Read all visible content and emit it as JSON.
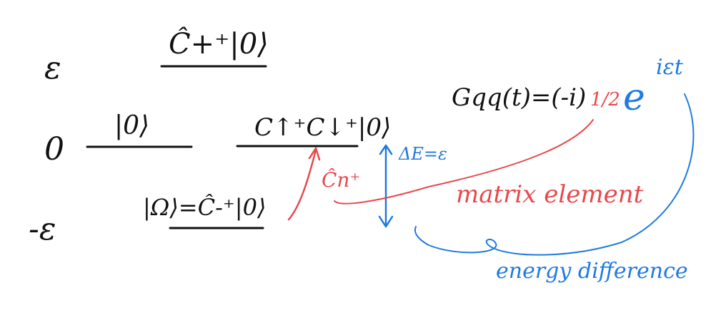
{
  "colors": {
    "ink": "#111111",
    "red": "#e8484b",
    "blue": "#1f7ae0",
    "background": "#ffffff"
  },
  "levels": [
    {
      "energy_label": "ε",
      "states": [
        {
          "label": "Ĉ+⁺|0⟩"
        }
      ]
    },
    {
      "energy_label": "0",
      "states": [
        {
          "label": "|0⟩"
        },
        {
          "label": "C↑⁺C↓⁺|0⟩"
        }
      ]
    },
    {
      "energy_label": "-ε",
      "states": [
        {
          "label": "|Ω⟩=Ĉ-⁺|0⟩"
        }
      ]
    }
  ],
  "transition": {
    "operator_label": "Ĉn⁺",
    "gap_label": "ΔE=ε"
  },
  "formula": {
    "lhs": "Gqq(t)=(-i)",
    "fraction": "1/2",
    "exp_base": "e",
    "exponent": "iεt"
  },
  "annotations": {
    "matrix_element": "matrix element",
    "energy_difference": "energy difference"
  }
}
